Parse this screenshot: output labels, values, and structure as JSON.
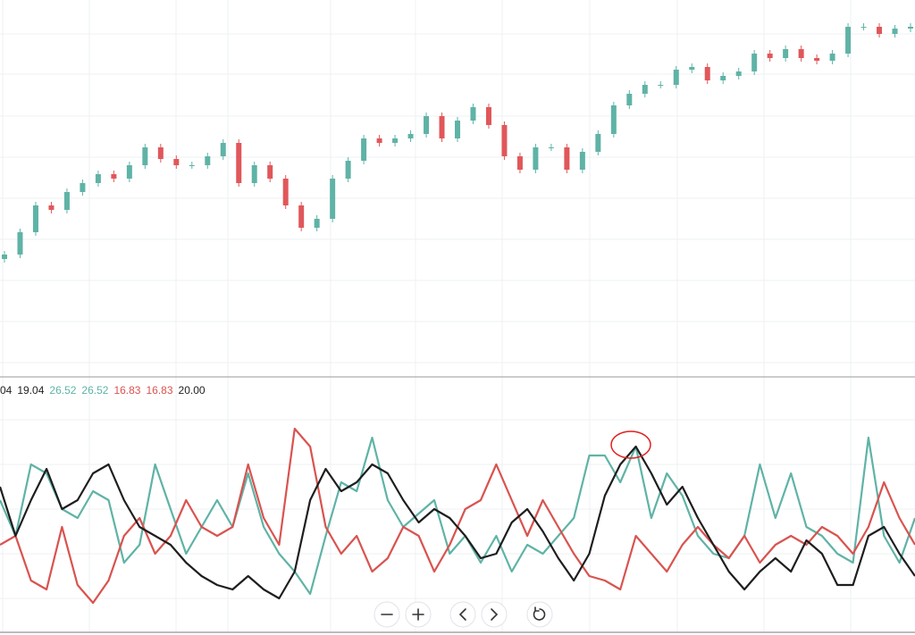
{
  "chart_data": [
    {
      "type": "candlestick",
      "up_color": "#5fb3a6",
      "down_color": "#e0575a",
      "ylim": [
        0,
        420
      ],
      "open": [
        130,
        135,
        160,
        190,
        185,
        205,
        215,
        225,
        220,
        235,
        255,
        242,
        235,
        235,
        245,
        260,
        215,
        235,
        220,
        190,
        165,
        175,
        220,
        240,
        265,
        260,
        265,
        270,
        290,
        265,
        285,
        300,
        280,
        245,
        230,
        255,
        255,
        230,
        250,
        270,
        302,
        315,
        325,
        325,
        342,
        345,
        330,
        335,
        340,
        360,
        355,
        365,
        355,
        352,
        360,
        390,
        390,
        382,
        388
      ],
      "close": [
        135,
        160,
        190,
        185,
        205,
        215,
        225,
        220,
        235,
        255,
        242,
        235,
        235,
        245,
        260,
        215,
        235,
        220,
        190,
        165,
        175,
        220,
        240,
        265,
        260,
        265,
        270,
        290,
        265,
        285,
        300,
        280,
        245,
        230,
        255,
        255,
        230,
        250,
        270,
        302,
        315,
        325,
        325,
        342,
        345,
        330,
        335,
        340,
        360,
        355,
        365,
        355,
        352,
        360,
        390,
        390,
        382,
        388,
        390
      ],
      "high": [
        139,
        164,
        194,
        194,
        209,
        219,
        229,
        229,
        239,
        259,
        259,
        246,
        239,
        249,
        264,
        264,
        239,
        239,
        224,
        194,
        179,
        224,
        244,
        269,
        269,
        269,
        274,
        294,
        294,
        289,
        304,
        304,
        284,
        249,
        259,
        259,
        259,
        254,
        274,
        306,
        319,
        329,
        329,
        346,
        349,
        349,
        339,
        344,
        364,
        364,
        369,
        369,
        359,
        364,
        394,
        394,
        394,
        392,
        394
      ],
      "low": [
        126,
        131,
        156,
        181,
        181,
        201,
        211,
        216,
        216,
        231,
        238,
        231,
        231,
        231,
        241,
        211,
        211,
        216,
        186,
        161,
        161,
        171,
        216,
        236,
        256,
        256,
        261,
        266,
        261,
        261,
        281,
        276,
        241,
        226,
        226,
        251,
        226,
        226,
        246,
        266,
        298,
        311,
        321,
        321,
        338,
        326,
        326,
        331,
        336,
        351,
        351,
        351,
        348,
        348,
        356,
        386,
        378,
        378,
        384
      ]
    },
    {
      "type": "line",
      "ylim": [
        0,
        50
      ],
      "legend_values": [
        {
          "text": "04",
          "color": "#222222"
        },
        {
          "text": "19.04",
          "color": "#222222"
        },
        {
          "text": "26.52",
          "color": "#5fb3a6"
        },
        {
          "text": "26.52",
          "color": "#5fb3a6"
        },
        {
          "text": "16.83",
          "color": "#d9534f"
        },
        {
          "text": "16.83",
          "color": "#d9534f"
        },
        {
          "text": "20.00",
          "color": "#222222"
        }
      ],
      "series": [
        {
          "color": "#5fb3a6",
          "values": [
            28,
            20,
            36,
            34,
            26,
            24,
            30,
            28,
            14,
            18,
            36,
            26,
            16,
            22,
            28,
            22,
            34,
            22,
            16,
            12,
            7,
            20,
            32,
            30,
            42,
            28,
            22,
            25,
            28,
            16,
            20,
            14,
            20,
            12,
            18,
            16,
            20,
            24,
            38,
            38,
            32,
            40,
            24,
            34,
            29,
            20,
            16,
            15,
            20,
            36,
            24,
            34,
            22,
            20,
            16,
            14,
            42,
            20,
            14,
            24
          ]
        },
        {
          "color": "#d9534f",
          "values": [
            18,
            20,
            10,
            8,
            22,
            9,
            5,
            10,
            20,
            24,
            16,
            20,
            28,
            22,
            20,
            22,
            36,
            24,
            18,
            44,
            40,
            22,
            16,
            20,
            12,
            15,
            22,
            20,
            12,
            18,
            26,
            28,
            36,
            28,
            20,
            28,
            22,
            16,
            11,
            10,
            8,
            20,
            16,
            12,
            18,
            22,
            18,
            15,
            20,
            14,
            18,
            20,
            18,
            22,
            20,
            16,
            22,
            32,
            24,
            18
          ]
        },
        {
          "color": "#1e1e1e",
          "values": [
            31,
            20,
            28,
            35,
            26,
            28,
            34,
            36,
            28,
            22,
            20,
            18,
            14,
            11,
            9,
            8,
            11,
            8,
            6,
            12,
            28,
            35,
            30,
            32,
            36,
            34,
            28,
            23,
            26,
            24,
            20,
            15,
            16,
            23,
            26,
            21,
            15,
            10,
            16,
            29,
            36,
            40,
            34,
            27,
            31,
            24,
            18,
            12,
            8,
            12,
            15,
            12,
            19,
            16,
            9,
            9,
            20,
            22,
            16,
            11
          ]
        }
      ]
    }
  ]
}
